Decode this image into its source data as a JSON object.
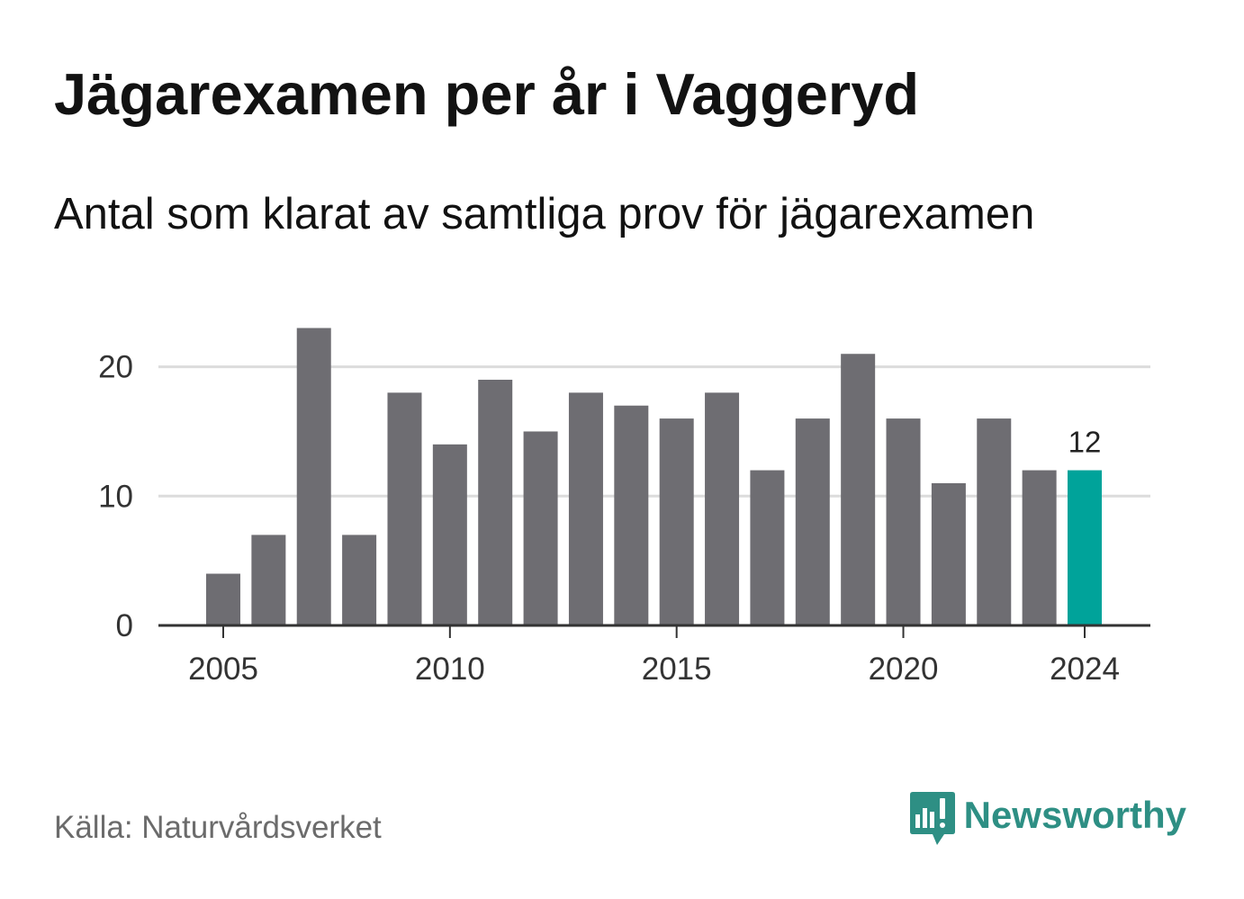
{
  "chart_data": {
    "type": "bar",
    "title": "Jägarexamen per år i Vaggeryd",
    "subtitle": "Antal som klarat av samtliga prov för jägarexamen",
    "x": [
      2005,
      2006,
      2007,
      2008,
      2009,
      2010,
      2011,
      2012,
      2013,
      2014,
      2015,
      2016,
      2017,
      2018,
      2019,
      2020,
      2021,
      2022,
      2023,
      2024
    ],
    "values": [
      4,
      7,
      23,
      7,
      18,
      14,
      19,
      15,
      18,
      17,
      16,
      18,
      12,
      16,
      21,
      16,
      11,
      16,
      12,
      12
    ],
    "xticks": [
      "2005",
      "2010",
      "2015",
      "2020",
      "2024"
    ],
    "yticks": [
      "0",
      "10",
      "20"
    ],
    "ylim": [
      0,
      23
    ],
    "grid": true,
    "highlight": {
      "x": 2024,
      "label": "12"
    }
  },
  "source": "Källa: Naturvårdsverket",
  "brand": {
    "name": "Newsworthy",
    "icon": "newsworthy-logo-icon"
  },
  "colors": {
    "bar": "#6e6d72",
    "highlight": "#00a39a",
    "grid": "#dcdcdc",
    "axis": "#333333",
    "brand": "#2e8f84"
  }
}
